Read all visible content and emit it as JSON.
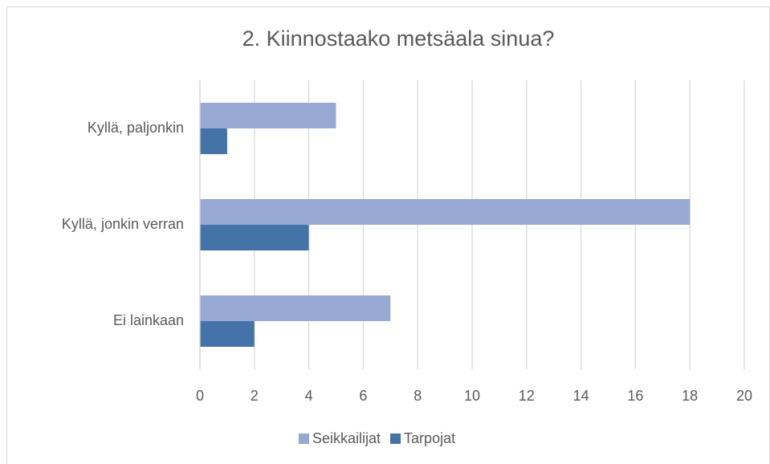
{
  "chart_data": {
    "type": "bar",
    "orientation": "horizontal",
    "title": "2. Kiinnostaako metsäala sinua?",
    "categories": [
      "Kyllä, paljonkin",
      "Kyllä, jonkin verran",
      "Ei lainkaan"
    ],
    "series": [
      {
        "name": "Seikkailijat",
        "color": "#97a9d3",
        "values": [
          5,
          18,
          7
        ]
      },
      {
        "name": "Tarpojat",
        "color": "#4573a8",
        "values": [
          1,
          4,
          2
        ]
      }
    ],
    "xlim": [
      0,
      20
    ],
    "xticks": [
      0,
      2,
      4,
      6,
      8,
      10,
      12,
      14,
      16,
      18,
      20
    ],
    "grid": true,
    "legend": "bottom"
  }
}
